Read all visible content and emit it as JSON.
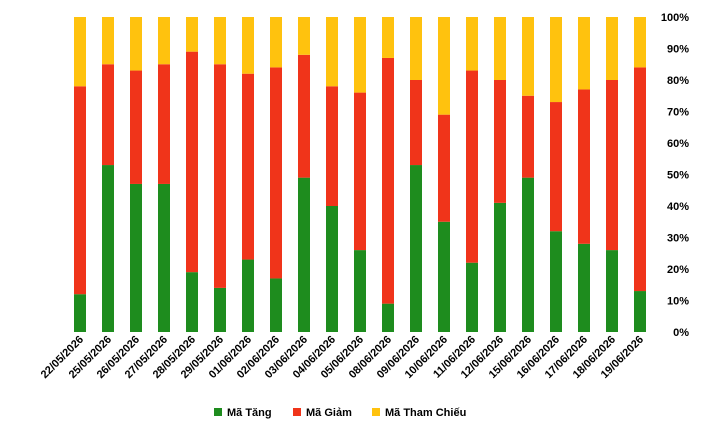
{
  "chart_data": {
    "type": "bar",
    "stacked": true,
    "categories": [
      "22/05/2026",
      "25/05/2026",
      "26/05/2026",
      "27/05/2026",
      "28/05/2026",
      "29/05/2026",
      "01/06/2026",
      "02/06/2026",
      "03/06/2026",
      "04/06/2026",
      "05/06/2026",
      "08/06/2026",
      "09/06/2026",
      "10/06/2026",
      "11/06/2026",
      "12/06/2026",
      "15/06/2026",
      "16/06/2026",
      "17/06/2026",
      "18/06/2026",
      "19/06/2026"
    ],
    "series": [
      {
        "name": "Mã Tăng",
        "color": "#1e8c1e",
        "values": [
          12,
          53,
          47,
          47,
          19,
          14,
          23,
          17,
          49,
          40,
          26,
          9,
          53,
          35,
          22,
          41,
          49,
          32,
          28,
          26,
          13
        ]
      },
      {
        "name": "Mã Giảm",
        "color": "#f0341a",
        "values": [
          66,
          32,
          36,
          38,
          70,
          71,
          59,
          67,
          39,
          38,
          50,
          78,
          27,
          34,
          61,
          39,
          26,
          41,
          49,
          54,
          71
        ]
      },
      {
        "name": "Mã Tham Chiếu",
        "color": "#ffc20e",
        "values": [
          22,
          15,
          17,
          15,
          11,
          15,
          18,
          16,
          12,
          22,
          24,
          13,
          20,
          31,
          17,
          20,
          25,
          27,
          23,
          20,
          16
        ]
      }
    ],
    "ylim": [
      0,
      100
    ],
    "yticks": [
      "0%",
      "10%",
      "20%",
      "30%",
      "40%",
      "50%",
      "60%",
      "70%",
      "80%",
      "90%",
      "100%"
    ],
    "y_axis_position": "right",
    "grid": false,
    "legend_position": "bottom"
  }
}
